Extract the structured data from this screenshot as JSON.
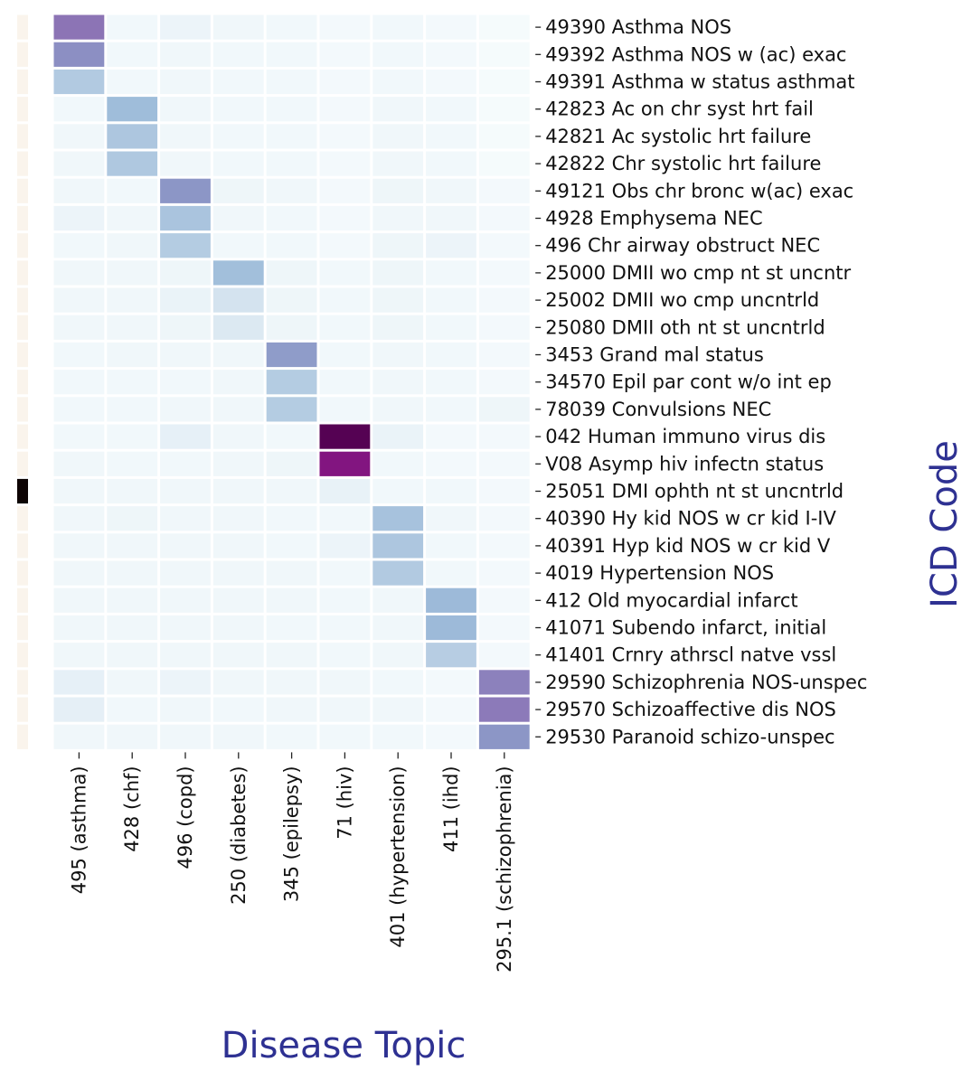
{
  "chart_data": {
    "type": "heatmap",
    "xlabel": "Disease Topic",
    "ylabel": "ICD Code",
    "title": "",
    "colormap": [
      "#f7fcfd",
      "#e0ecf4",
      "#bfd3e6",
      "#9ebcda",
      "#8c96c6",
      "#8c6bb1",
      "#88419d",
      "#810f7c",
      "#4d004b"
    ],
    "side_strip_colors": {
      "low": "#faf4ec",
      "high": "#0d0404"
    },
    "columns": [
      "495 (asthma)",
      "428 (chf)",
      "496 (copd)",
      "250 (diabetes)",
      "345 (epilepsy)",
      "71 (hiv)",
      "401 (hypertension)",
      "411 (ihd)",
      "295.1 (schizophrenia)"
    ],
    "rows": [
      "49390 Asthma NOS",
      "49392 Asthma NOS w (ac) exac",
      "49391 Asthma w status asthmat",
      "42823 Ac on chr syst hrt fail",
      "42821 Ac systolic hrt failure",
      "42822 Chr systolic hrt failure",
      "49121 Obs chr bronc w(ac) exac",
      "4928 Emphysema NEC",
      "496 Chr airway obstruct NEC",
      "25000 DMII wo cmp nt st uncntr",
      "25002 DMII wo cmp uncntrld",
      "25080 DMII oth nt st uncntrld",
      "3453 Grand mal status",
      "34570 Epil par cont w/o int ep",
      "78039 Convulsions NEC",
      "042 Human immuno virus dis",
      "V08 Asymp hiv infectn status",
      "25051 DMI ophth nt st uncntrld",
      "40390 Hy kid NOS w cr kid I-IV",
      "40391 Hyp kid NOS w cr kid V",
      "4019 Hypertension NOS",
      "412 Old myocardial infarct",
      "41071 Subendo infarct, initial",
      "41401 Crnry athrscl natve vssl",
      "29590 Schizophrenia NOS-unspec",
      "29570 Schizoaffective dis NOS",
      "29530 Paranoid schizo-unspec"
    ],
    "values": [
      [
        0.6,
        0.03,
        0.06,
        0.04,
        0.03,
        0.02,
        0.03,
        0.02,
        0.01
      ],
      [
        0.52,
        0.03,
        0.04,
        0.03,
        0.03,
        0.02,
        0.03,
        0.02,
        0.01
      ],
      [
        0.3,
        0.03,
        0.04,
        0.03,
        0.03,
        0.02,
        0.03,
        0.02,
        0.01
      ],
      [
        0.03,
        0.37,
        0.04,
        0.03,
        0.03,
        0.02,
        0.04,
        0.03,
        0.01
      ],
      [
        0.04,
        0.32,
        0.04,
        0.03,
        0.03,
        0.02,
        0.04,
        0.03,
        0.01
      ],
      [
        0.04,
        0.31,
        0.04,
        0.03,
        0.03,
        0.02,
        0.04,
        0.03,
        0.01
      ],
      [
        0.04,
        0.03,
        0.5,
        0.05,
        0.04,
        0.02,
        0.05,
        0.04,
        0.02
      ],
      [
        0.06,
        0.04,
        0.33,
        0.04,
        0.03,
        0.02,
        0.04,
        0.04,
        0.02
      ],
      [
        0.03,
        0.04,
        0.29,
        0.03,
        0.03,
        0.02,
        0.05,
        0.06,
        0.02
      ],
      [
        0.04,
        0.04,
        0.05,
        0.36,
        0.05,
        0.03,
        0.05,
        0.03,
        0.02
      ],
      [
        0.04,
        0.04,
        0.07,
        0.17,
        0.05,
        0.03,
        0.05,
        0.03,
        0.02
      ],
      [
        0.04,
        0.04,
        0.05,
        0.14,
        0.05,
        0.03,
        0.05,
        0.03,
        0.02
      ],
      [
        0.03,
        0.04,
        0.04,
        0.04,
        0.48,
        0.03,
        0.04,
        0.03,
        0.02
      ],
      [
        0.03,
        0.03,
        0.03,
        0.04,
        0.29,
        0.03,
        0.04,
        0.03,
        0.02
      ],
      [
        0.03,
        0.03,
        0.04,
        0.04,
        0.29,
        0.03,
        0.04,
        0.03,
        0.05
      ],
      [
        0.03,
        0.03,
        0.09,
        0.04,
        0.03,
        0.98,
        0.07,
        0.02,
        0.02
      ],
      [
        0.04,
        0.03,
        0.03,
        0.04,
        0.05,
        0.86,
        0.03,
        0.02,
        0.02
      ],
      [
        0.04,
        0.04,
        0.04,
        0.04,
        0.04,
        0.08,
        0.03,
        0.03,
        0.02
      ],
      [
        0.04,
        0.05,
        0.04,
        0.04,
        0.03,
        0.03,
        0.34,
        0.04,
        0.02
      ],
      [
        0.04,
        0.04,
        0.04,
        0.04,
        0.03,
        0.06,
        0.32,
        0.03,
        0.02
      ],
      [
        0.04,
        0.04,
        0.04,
        0.04,
        0.04,
        0.03,
        0.3,
        0.03,
        0.02
      ],
      [
        0.04,
        0.04,
        0.04,
        0.04,
        0.04,
        0.03,
        0.04,
        0.38,
        0.02
      ],
      [
        0.04,
        0.04,
        0.04,
        0.04,
        0.03,
        0.03,
        0.04,
        0.38,
        0.02
      ],
      [
        0.04,
        0.04,
        0.04,
        0.04,
        0.04,
        0.03,
        0.04,
        0.28,
        0.02
      ],
      [
        0.09,
        0.04,
        0.06,
        0.04,
        0.04,
        0.04,
        0.03,
        0.02,
        0.56
      ],
      [
        0.1,
        0.03,
        0.04,
        0.03,
        0.04,
        0.04,
        0.04,
        0.02,
        0.58
      ],
      [
        0.04,
        0.04,
        0.04,
        0.04,
        0.03,
        0.03,
        0.03,
        0.02,
        0.5
      ]
    ],
    "side_strip": [
      0,
      0,
      0,
      0,
      0,
      0,
      0,
      0,
      0,
      0,
      0,
      0,
      0,
      0,
      0,
      0,
      0,
      1,
      0,
      0,
      0,
      0,
      0,
      0,
      0,
      0,
      0
    ],
    "colorbar": false,
    "grid": false
  }
}
